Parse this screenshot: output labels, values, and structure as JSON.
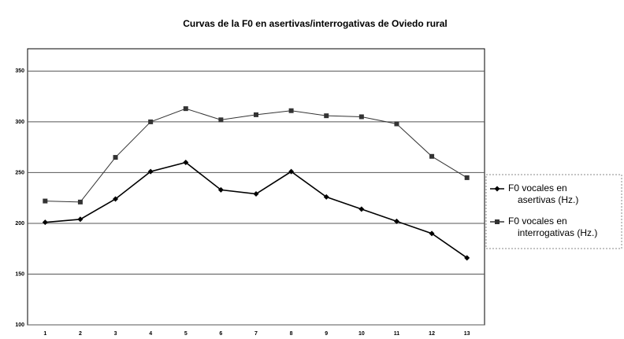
{
  "chart_data": {
    "type": "line",
    "title": "Curvas de la F0 en asertivas/interrogativas de Oviedo rural",
    "categories": [
      "1",
      "2",
      "3",
      "4",
      "5",
      "6",
      "7",
      "8",
      "9",
      "10",
      "11",
      "12",
      "13"
    ],
    "series": [
      {
        "name": "F0 vocales en asertivas (Hz.)",
        "color": "#000000",
        "marker": "diamond",
        "values": [
          201,
          204,
          224,
          251,
          260,
          233,
          229,
          251,
          226,
          214,
          202,
          190,
          166
        ]
      },
      {
        "name": "F0 vocales en interrogativas (Hz.)",
        "color": "#333333",
        "marker": "square",
        "values": [
          222,
          221,
          265,
          300,
          313,
          302,
          307,
          311,
          306,
          305,
          298,
          266,
          245
        ]
      }
    ],
    "ylim": [
      100,
      372
    ],
    "yticks": [
      100,
      150,
      200,
      250,
      300,
      350
    ],
    "grid": true,
    "legend": "right"
  }
}
